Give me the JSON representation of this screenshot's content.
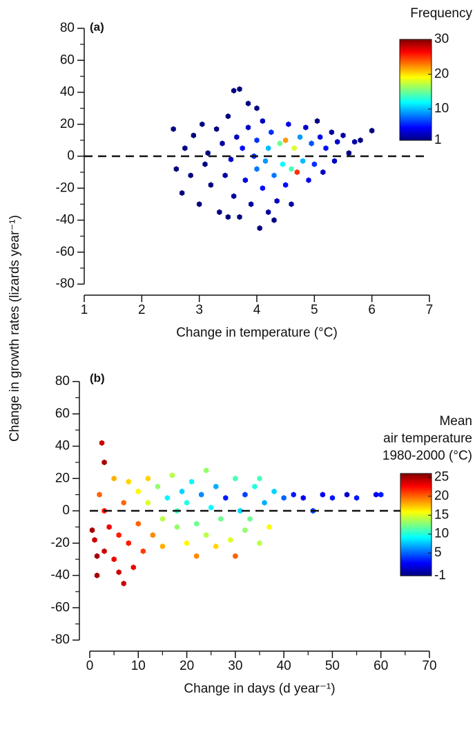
{
  "chart_data": [
    {
      "type": "hexbin",
      "panel_label": "(a)",
      "x_label": "Change in temperature (°C)",
      "y_label": "Change in growth rates (lizards year⁻¹)",
      "xlim": [
        1,
        7
      ],
      "xticks": [
        1,
        2,
        3,
        4,
        5,
        6,
        7
      ],
      "ylim": [
        -80,
        80
      ],
      "yticks": [
        -80,
        -60,
        -40,
        -20,
        0,
        20,
        40,
        60,
        80
      ],
      "y_minor_ticks": [
        -70,
        -50,
        -30,
        -10,
        10,
        30,
        50,
        70
      ],
      "hline": 0,
      "colormap": "jet",
      "colorbar": {
        "title": [
          "Frequency"
        ],
        "lim": [
          1,
          30
        ],
        "ticks": [
          1,
          10,
          20,
          30
        ]
      },
      "x": [
        2.55,
        2.6,
        2.7,
        2.75,
        2.85,
        2.9,
        3.0,
        3.05,
        3.1,
        3.15,
        3.2,
        3.3,
        3.35,
        3.4,
        3.45,
        3.5,
        3.6,
        3.7,
        3.55,
        3.6,
        3.65,
        3.7,
        3.75,
        3.8,
        3.85,
        3.9,
        3.95,
        4.0,
        4.0,
        4.05,
        4.1,
        4.1,
        4.15,
        4.2,
        4.2,
        4.25,
        4.3,
        4.35,
        4.4,
        4.45,
        4.5,
        4.5,
        4.55,
        4.6,
        4.65,
        4.7,
        4.75,
        4.8,
        4.85,
        4.9,
        4.95,
        5.0,
        5.05,
        5.1,
        5.15,
        5.2,
        5.3,
        5.35,
        5.4,
        5.5,
        5.6,
        5.7,
        5.8,
        6.0,
        4.0,
        3.85,
        4.3,
        4.6,
        3.5
      ],
      "y": [
        17,
        -8,
        -23,
        5,
        -12,
        13,
        -30,
        20,
        -5,
        2,
        -18,
        17,
        -35,
        8,
        -12,
        25,
        41,
        42,
        -2,
        -25,
        12,
        -38,
        5,
        -15,
        18,
        -30,
        0,
        -8,
        10,
        -45,
        -20,
        22,
        -3,
        5,
        -35,
        15,
        -12,
        -28,
        8,
        -5,
        10,
        -18,
        20,
        -8,
        5,
        -10,
        12,
        -3,
        18,
        -15,
        8,
        -5,
        22,
        12,
        -10,
        5,
        15,
        -3,
        9,
        13,
        2,
        9,
        10,
        16,
        30,
        33,
        -40,
        -30,
        -38
      ],
      "values": [
        1,
        1,
        1,
        1,
        1,
        1,
        1,
        1,
        1,
        1,
        1,
        1,
        1,
        2,
        2,
        1,
        1,
        1,
        3,
        2,
        3,
        1,
        5,
        4,
        3,
        2,
        6,
        8,
        6,
        1,
        5,
        3,
        9,
        10,
        2,
        6,
        8,
        3,
        15,
        12,
        22,
        5,
        4,
        14,
        18,
        25,
        9,
        10,
        3,
        4,
        7,
        6,
        1,
        4,
        3,
        5,
        2,
        3,
        3,
        2,
        1,
        2,
        1,
        1,
        1,
        1,
        1,
        2,
        1
      ]
    },
    {
      "type": "hexbin",
      "panel_label": "(b)",
      "x_label": "Change in days (d year⁻¹)",
      "xlim": [
        0,
        70
      ],
      "xticks": [
        0,
        10,
        20,
        30,
        40,
        50,
        60,
        70
      ],
      "x_minor_ticks": [
        5,
        15,
        25,
        35,
        45,
        55,
        65
      ],
      "ylim": [
        -80,
        80
      ],
      "yticks": [
        -80,
        -60,
        -40,
        -20,
        0,
        20,
        40,
        60,
        80
      ],
      "y_minor_ticks": [
        -70,
        -50,
        -30,
        -10,
        10,
        30,
        50,
        70
      ],
      "hline": 0,
      "colormap": "jet",
      "colorbar": {
        "title": [
          "Mean",
          "air temperature",
          "1980-2000 (°C)"
        ],
        "lim": [
          -1,
          26
        ],
        "ticks": [
          -1,
          5,
          10,
          15,
          20,
          25
        ]
      },
      "x": [
        0.5,
        1,
        1.5,
        2,
        2.5,
        3,
        3,
        4,
        5,
        5,
        6,
        7,
        7,
        8,
        8,
        9,
        10,
        10,
        11,
        12,
        12,
        13,
        14,
        15,
        15,
        16,
        17,
        18,
        18,
        19,
        20,
        20,
        21,
        22,
        22,
        23,
        24,
        24,
        25,
        26,
        26,
        27,
        28,
        29,
        30,
        30,
        31,
        32,
        32,
        33,
        34,
        35,
        36,
        37,
        38,
        40,
        42,
        44,
        46,
        48,
        50,
        53,
        55,
        59,
        60,
        3,
        1.5,
        6,
        35
      ],
      "y": [
        -12,
        -18,
        -40,
        10,
        42,
        30,
        -25,
        -10,
        -30,
        20,
        -15,
        -45,
        5,
        -20,
        18,
        -35,
        -8,
        12,
        -25,
        5,
        20,
        -15,
        15,
        -5,
        -22,
        8,
        22,
        -10,
        0,
        12,
        -20,
        5,
        18,
        -8,
        -28,
        10,
        25,
        -15,
        2,
        -22,
        15,
        -5,
        8,
        -18,
        20,
        -28,
        0,
        -12,
        10,
        -5,
        15,
        -20,
        5,
        -10,
        12,
        8,
        10,
        8,
        0,
        10,
        8,
        10,
        8,
        10,
        10,
        0,
        -28,
        -38,
        20
      ],
      "values": [
        25,
        24,
        25,
        20,
        24,
        25,
        24,
        23,
        23,
        18,
        22,
        24,
        20,
        22,
        17,
        23,
        20,
        16,
        21,
        15,
        17,
        19,
        13,
        14,
        18,
        9,
        14,
        13,
        11,
        8,
        16,
        10,
        9,
        12,
        19,
        6,
        13,
        14,
        9,
        17,
        7,
        12,
        3,
        15,
        11,
        20,
        8,
        13,
        4,
        12,
        10,
        14,
        7,
        16,
        8,
        5,
        3,
        2,
        4,
        2,
        3,
        1,
        3,
        2,
        3,
        22,
        25,
        24,
        11
      ]
    }
  ]
}
